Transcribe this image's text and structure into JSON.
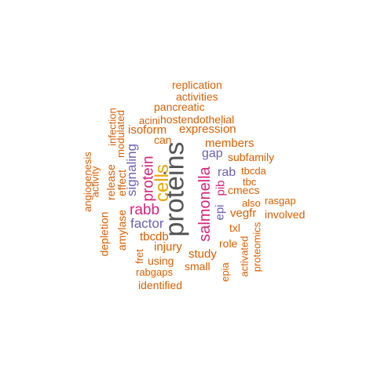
{
  "palette": {
    "orange": "#d95f02",
    "magenta": "#d6247a",
    "purple": "#6e5fb4",
    "gold": "#e6a500",
    "gray": "#555555"
  },
  "words": {
    "proteins": "proteins",
    "cells": "cells",
    "protein": "protein",
    "salmonella": "salmonella",
    "rabb": "rabb",
    "signaling": "signaling",
    "factor": "factor",
    "gap": "gap",
    "rab": "rab",
    "epi": "epi",
    "pib": "pib",
    "replication": "replication",
    "activities": "activities",
    "pancreatic": "pancreatic",
    "acini": "acini",
    "hostendothelial": "hostendothelial",
    "infection": "infection",
    "modulated": "modulated",
    "isoform": "isoform",
    "expression": "expression",
    "can": "can",
    "members": "members",
    "subfamily": "subfamily",
    "tbcda": "tbcda",
    "tbc": "tbc",
    "cmecs": "cmecs",
    "also": "also",
    "rasgap": "rasgap",
    "vegfr": "vegfr",
    "involved": "involved",
    "txl": "txl",
    "proteomics": "proteomics",
    "activated": "activated",
    "role": "role",
    "epia": "epia",
    "study": "study",
    "small": "small",
    "injury": "injury",
    "using": "using",
    "tbcdb": "tbcdb",
    "fret": "fret",
    "rabgaps": "rabgaps",
    "identified": "identified",
    "amylase": "amylase",
    "effect": "effect",
    "release": "release",
    "activity": "activity",
    "angiogenesis": "angiogenesis",
    "depletion": "depletion"
  }
}
